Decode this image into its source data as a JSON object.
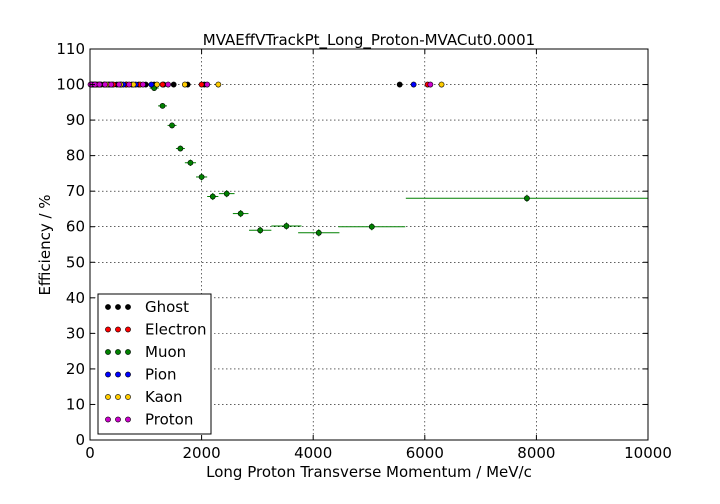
{
  "chart_data": {
    "type": "scatter",
    "title": "MVAEffVTrackPt_Long_Proton-MVACut0.0001",
    "xlabel": "Long Proton Transverse Momentum / MeV/c",
    "ylabel": "Efficiency / %",
    "xlim": [
      0,
      10000
    ],
    "ylim": [
      0,
      110
    ],
    "x_ticks": [
      "0",
      "2000",
      "4000",
      "6000",
      "8000",
      "10000"
    ],
    "y_ticks": [
      "0",
      "10",
      "20",
      "30",
      "40",
      "50",
      "60",
      "70",
      "80",
      "90",
      "100",
      "110"
    ],
    "grid": true,
    "legend_position": "lower-left",
    "series": [
      {
        "name": "Ghost",
        "color": "#000000",
        "points": [
          {
            "x": 20,
            "y": 100
          },
          {
            "x": 60,
            "y": 100
          },
          {
            "x": 100,
            "y": 100
          },
          {
            "x": 150,
            "y": 100
          },
          {
            "x": 200,
            "y": 100
          },
          {
            "x": 260,
            "y": 100
          },
          {
            "x": 330,
            "y": 100
          },
          {
            "x": 400,
            "y": 100
          },
          {
            "x": 480,
            "y": 100
          },
          {
            "x": 560,
            "y": 100
          },
          {
            "x": 650,
            "y": 100
          },
          {
            "x": 750,
            "y": 100
          },
          {
            "x": 870,
            "y": 100
          },
          {
            "x": 1000,
            "y": 100
          },
          {
            "x": 1150,
            "y": 100
          },
          {
            "x": 1320,
            "y": 100
          },
          {
            "x": 1500,
            "y": 100
          },
          {
            "x": 1750,
            "y": 100
          },
          {
            "x": 2050,
            "y": 100
          },
          {
            "x": 5550,
            "y": 100
          }
        ]
      },
      {
        "name": "Electron",
        "color": "#ff0000",
        "points": [
          {
            "x": 30,
            "y": 100
          },
          {
            "x": 120,
            "y": 100
          },
          {
            "x": 250,
            "y": 100
          },
          {
            "x": 420,
            "y": 100
          },
          {
            "x": 650,
            "y": 100
          },
          {
            "x": 900,
            "y": 100
          },
          {
            "x": 1300,
            "y": 100
          },
          {
            "x": 2000,
            "y": 100
          },
          {
            "x": 6050,
            "y": 100
          }
        ]
      },
      {
        "name": "Muon",
        "color": "#008000",
        "points": [
          {
            "x": 1150,
            "xerr": 80,
            "y": 99,
            "yerr": 0.6
          },
          {
            "x": 1300,
            "xerr": 80,
            "y": 94,
            "yerr": 0.7
          },
          {
            "x": 1470,
            "xerr": 80,
            "y": 88.5,
            "yerr": 0.8
          },
          {
            "x": 1620,
            "xerr": 80,
            "y": 82,
            "yerr": 0.8
          },
          {
            "x": 1800,
            "xerr": 100,
            "y": 78,
            "yerr": 0.9
          },
          {
            "x": 2000,
            "xerr": 100,
            "y": 74,
            "yerr": 1.0
          },
          {
            "x": 2200,
            "xerr": 100,
            "y": 68.5,
            "yerr": 1.0
          },
          {
            "x": 2450,
            "xerr": 140,
            "y": 69.3,
            "yerr": 1.0
          },
          {
            "x": 2700,
            "xerr": 140,
            "y": 63.7,
            "yerr": 1.0
          },
          {
            "x": 3050,
            "xerr": 200,
            "y": 59,
            "yerr": 1.0
          },
          {
            "x": 3520,
            "xerr": 270,
            "y": 60.2,
            "yerr": 1.0
          },
          {
            "x": 4100,
            "xerr": 370,
            "y": 58.3,
            "yerr": 1.0
          },
          {
            "x": 5050,
            "xerr": 600,
            "y": 60,
            "yerr": 1.0
          },
          {
            "x": 7830,
            "xerr": 2170,
            "y": 68,
            "yerr": 1.0
          }
        ]
      },
      {
        "name": "Pion",
        "color": "#0000ff",
        "points": [
          {
            "x": 40,
            "y": 100
          },
          {
            "x": 180,
            "y": 100
          },
          {
            "x": 350,
            "y": 100
          },
          {
            "x": 600,
            "y": 100
          },
          {
            "x": 820,
            "y": 100
          },
          {
            "x": 1100,
            "y": 100
          },
          {
            "x": 5800,
            "y": 100
          }
        ]
      },
      {
        "name": "Kaon",
        "color": "#ffcc00",
        "points": [
          {
            "x": 80,
            "y": 100
          },
          {
            "x": 300,
            "y": 100
          },
          {
            "x": 550,
            "y": 100
          },
          {
            "x": 780,
            "y": 100
          },
          {
            "x": 1200,
            "y": 100
          },
          {
            "x": 1700,
            "y": 100
          },
          {
            "x": 2300,
            "y": 100
          },
          {
            "x": 6300,
            "y": 100
          }
        ]
      },
      {
        "name": "Proton",
        "color": "#cc00cc",
        "points": [
          {
            "x": 10,
            "y": 100
          },
          {
            "x": 90,
            "y": 100
          },
          {
            "x": 170,
            "y": 100
          },
          {
            "x": 270,
            "y": 100
          },
          {
            "x": 380,
            "y": 100
          },
          {
            "x": 520,
            "y": 100
          },
          {
            "x": 700,
            "y": 100
          },
          {
            "x": 950,
            "y": 100
          },
          {
            "x": 1400,
            "y": 100
          },
          {
            "x": 2100,
            "y": 100
          },
          {
            "x": 6100,
            "y": 100
          }
        ]
      }
    ]
  }
}
